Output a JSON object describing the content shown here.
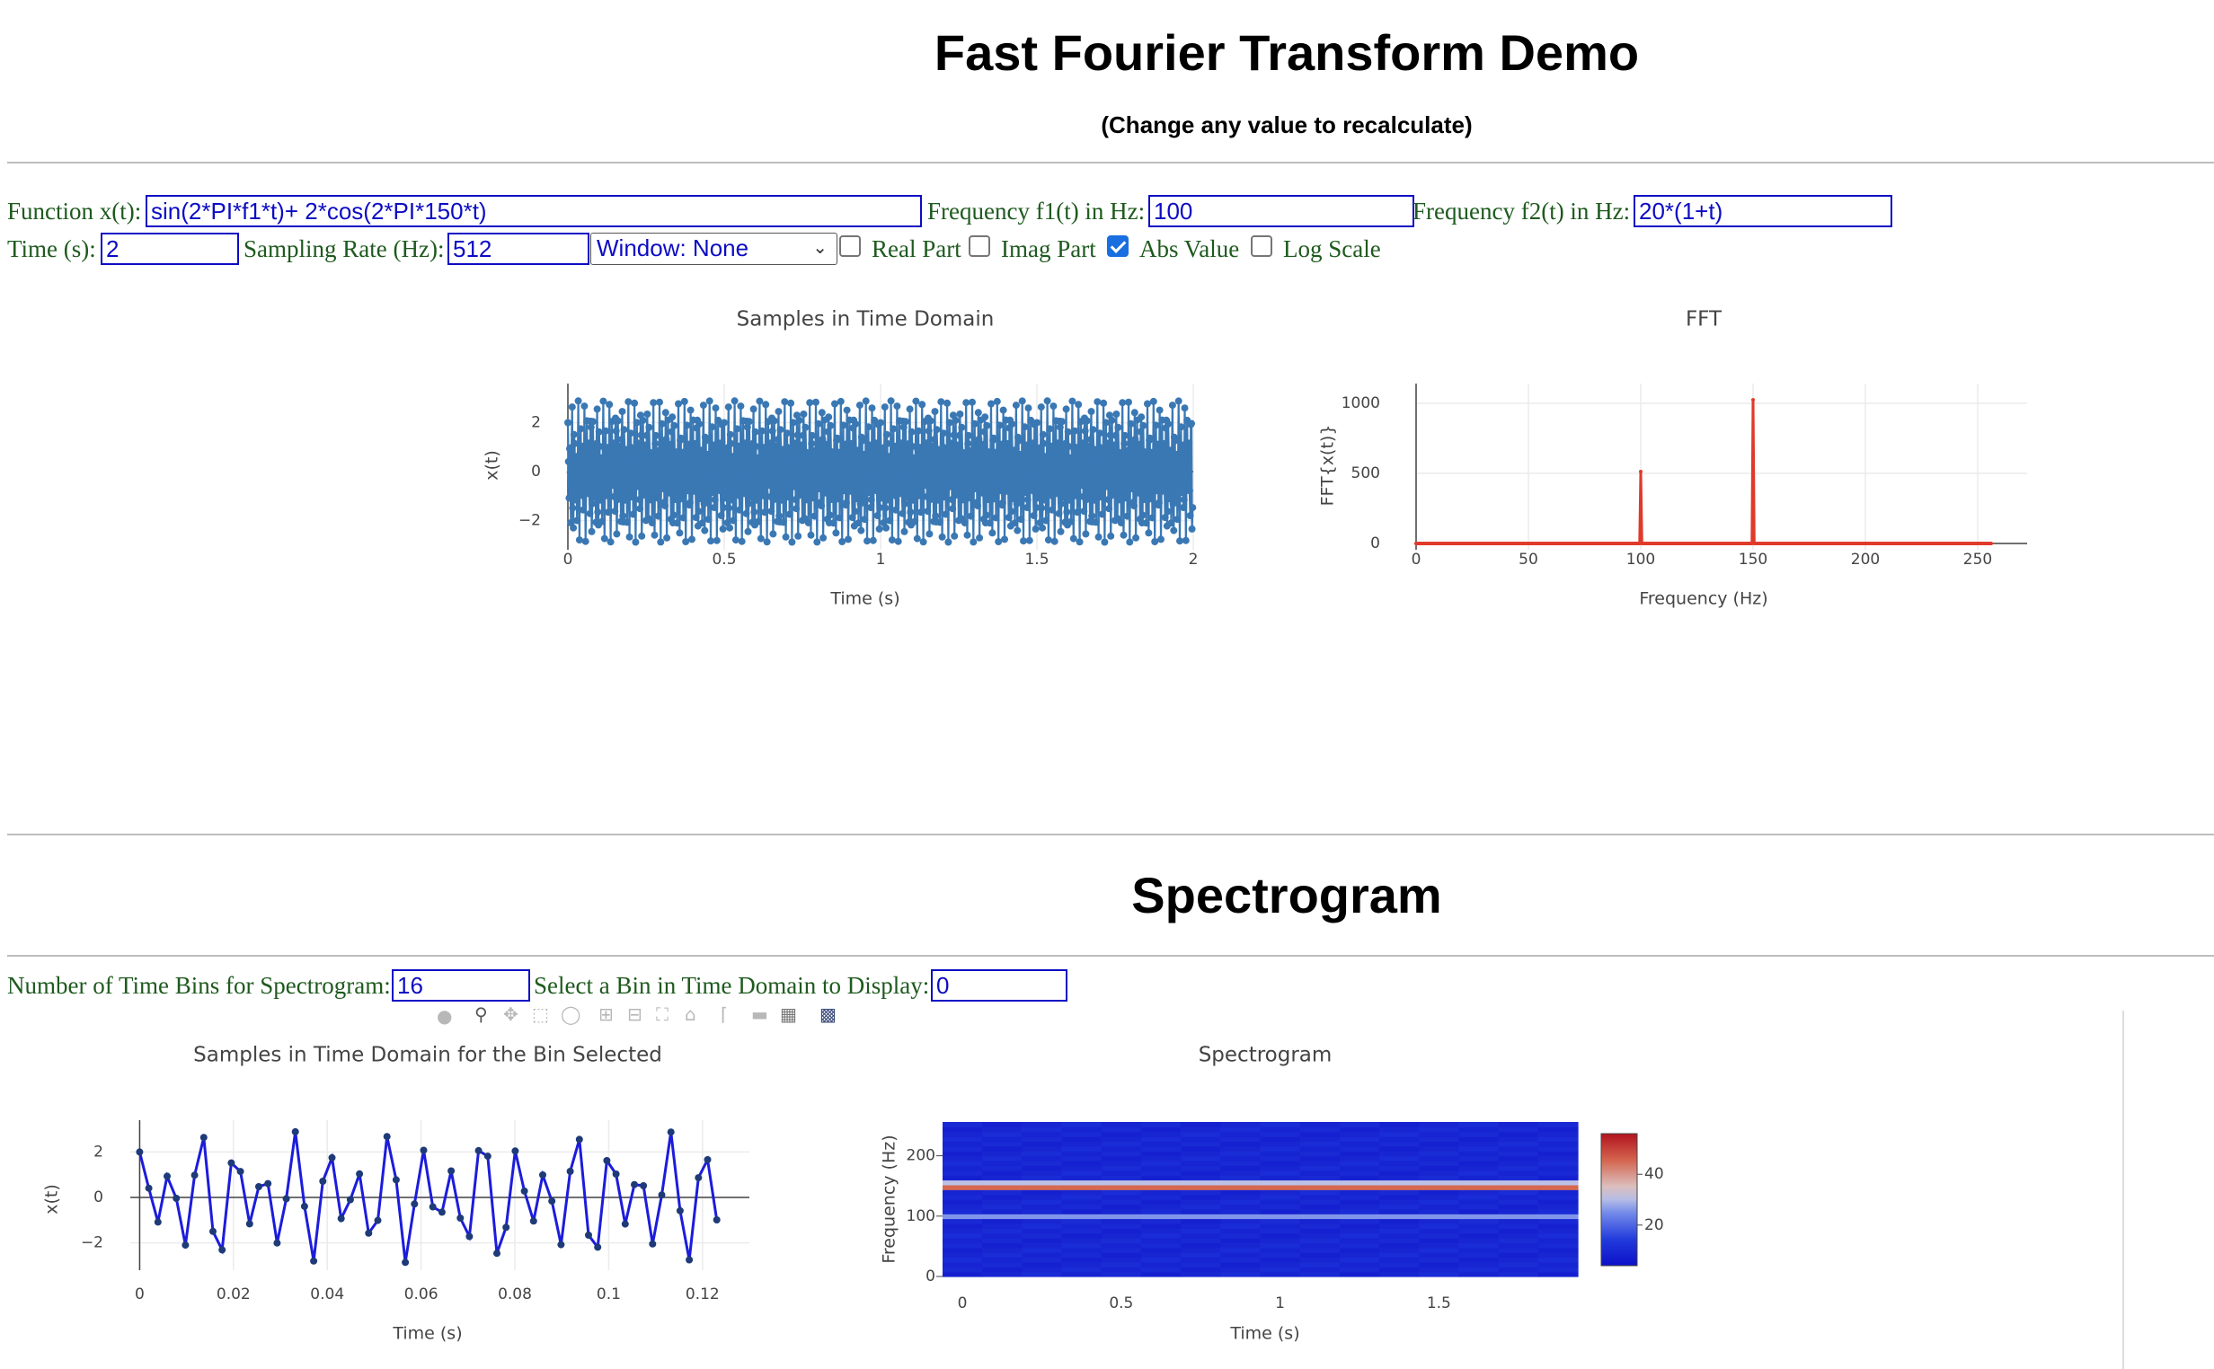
{
  "header": {
    "title": "Fast Fourier Transform Demo",
    "subtitle": "(Change any value to recalculate)"
  },
  "controls": {
    "function_label": "Function x(t):",
    "function_value": "sin(2*PI*f1*t)+ 2*cos(2*PI*150*t)",
    "f1_label": "Frequency f1(t) in Hz:",
    "f1_value": "100",
    "f2_label": "Frequency f2(t) in Hz:",
    "f2_value": "20*(1+t)",
    "time_label": "Time (s):",
    "time_value": "2",
    "rate_label": "Sampling Rate (Hz):",
    "rate_value": "512",
    "window_value": "Window: None",
    "real_label": "Real Part",
    "real_checked": false,
    "imag_label": "Imag Part",
    "imag_checked": false,
    "abs_label": "Abs Value",
    "abs_checked": true,
    "log_label": "Log Scale",
    "log_checked": false
  },
  "spectrogram_section": {
    "title": "Spectrogram",
    "bins_label": "Number of Time Bins for Spectrogram:",
    "bins_value": "16",
    "select_label": "Select a Bin in Time Domain to Display:",
    "select_value": "0"
  },
  "modebar_icons": [
    "camera-icon",
    "zoom-icon",
    "pan-icon",
    "box-select-icon",
    "lasso-icon",
    "zoom-in-icon",
    "zoom-out-icon",
    "autoscale-icon",
    "home-icon",
    "spike-lines-icon",
    "hover-closest-icon",
    "hover-compare-icon",
    "plotly-logo-icon"
  ],
  "colors": {
    "control_text": "#1e5a1e",
    "input_text": "#0c0cc4",
    "time_series": "#3a78b4",
    "fft_series": "#e03a2a",
    "bin_series": "#1c1cdc"
  },
  "chart_data": [
    {
      "id": "time",
      "type": "line",
      "title": "Samples in Time Domain",
      "xlabel": "Time (s)",
      "ylabel": "x(t)",
      "xlim": [
        0,
        2
      ],
      "ylim": [
        -3.2,
        3.6
      ],
      "xticks": [
        0,
        0.5,
        1,
        1.5,
        2
      ],
      "xtick_labels": [
        "0",
        "0.5",
        "1",
        "1.5",
        "2"
      ],
      "yticks": [
        -2,
        0,
        2
      ],
      "ytick_labels": [
        "−2",
        "0",
        "2"
      ],
      "function": "sin(2*PI*f1*t)+ 2*cos(2*PI*150*t)",
      "f1": 100,
      "sampling_rate": 512,
      "duration": 2,
      "markers": true
    },
    {
      "id": "fft",
      "type": "line",
      "title": "FFT",
      "xlabel": "Frequency (Hz)",
      "ylabel": "FFT{x(t)}",
      "xlim": [
        0,
        272
      ],
      "ylim": [
        -45,
        1140
      ],
      "xticks": [
        0,
        50,
        100,
        150,
        200,
        250
      ],
      "xtick_labels": [
        "0",
        "50",
        "100",
        "150",
        "200",
        "250"
      ],
      "yticks": [
        0,
        500,
        1000
      ],
      "ytick_labels": [
        "0",
        "500",
        "1000"
      ],
      "x_range": [
        0,
        256
      ],
      "peaks": [
        {
          "x": 100,
          "y": 512
        },
        {
          "x": 150,
          "y": 1024
        }
      ]
    },
    {
      "id": "bin",
      "type": "line",
      "title": "Samples in Time Domain for the Bin Selected",
      "xlabel": "Time (s)",
      "ylabel": "x(t)",
      "xlim": [
        -0.002,
        0.13
      ],
      "ylim": [
        -3.2,
        3.4
      ],
      "xticks": [
        0,
        0.02,
        0.04,
        0.06,
        0.08,
        0.1,
        0.12
      ],
      "xtick_labels": [
        "0",
        "0.02",
        "0.04",
        "0.06",
        "0.08",
        "0.1",
        "0.12"
      ],
      "yticks": [
        -2,
        0,
        2
      ],
      "ytick_labels": [
        "−2",
        "0",
        "2"
      ],
      "points": 64
    },
    {
      "id": "spectrogram",
      "type": "heatmap",
      "title": "Spectrogram",
      "xlabel": "Time (s)",
      "ylabel": "Frequency (Hz)",
      "xlim": [
        -0.0625,
        1.9375
      ],
      "ylim": [
        0,
        256
      ],
      "xticks": [
        0,
        0.5,
        1,
        1.5
      ],
      "xtick_labels": [
        "0",
        "0.5",
        "1",
        "1.5"
      ],
      "yticks": [
        0,
        100,
        200
      ],
      "ytick_labels": [
        "0",
        "100",
        "200"
      ],
      "colorbar_ticks": [
        20,
        40
      ],
      "colorbar_tick_labels": [
        "20",
        "40"
      ],
      "time_bins": 16,
      "bands": [
        {
          "freq": 150,
          "level": 52
        },
        {
          "freq": 100,
          "level": 24
        }
      ]
    }
  ]
}
